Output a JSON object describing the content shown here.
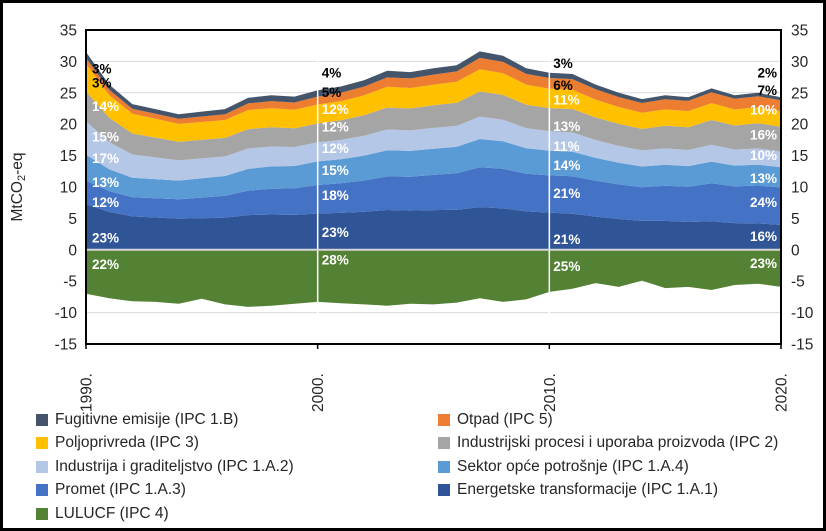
{
  "figure": {
    "y_axis_label": {
      "pre": "MtCO",
      "sub": "2",
      "post": "-eq"
    }
  },
  "chart_data": {
    "type": "area",
    "stacked": true,
    "title": "",
    "xlabel": "",
    "ylabel": "MtCO2-eq",
    "ylim": [
      -15,
      35
    ],
    "grid": true,
    "legend_position": "bottom",
    "y_ticks": [
      35,
      30,
      25,
      20,
      15,
      10,
      5,
      0,
      -5,
      -10,
      -15
    ],
    "x_tick_years": [
      1990,
      2000,
      2010,
      2020
    ],
    "x_tick_labels": [
      "1990.",
      "2000.",
      "2010.",
      "2020."
    ],
    "years": [
      1990,
      1991,
      1992,
      1993,
      1994,
      1995,
      1996,
      1997,
      1998,
      1999,
      2000,
      2001,
      2002,
      2003,
      2004,
      2005,
      2006,
      2007,
      2008,
      2009,
      2010,
      2011,
      2012,
      2013,
      2014,
      2015,
      2016,
      2017,
      2018,
      2019,
      2020
    ],
    "totals_excl_lulucf": [
      31.5,
      26.3,
      23.2,
      22.4,
      21.6,
      22.0,
      22.4,
      24.2,
      24.6,
      24.4,
      25.4,
      26.0,
      27.0,
      28.5,
      28.3,
      28.9,
      29.4,
      31.6,
      30.9,
      28.9,
      28.2,
      28.0,
      26.3,
      25.0,
      24.0,
      24.6,
      24.3,
      25.7,
      24.6,
      25.0,
      24.3
    ],
    "series": [
      {
        "name": "Energetske transformacije (IPC 1.A.1)",
        "slug": "energetske-transformacije",
        "color": "#2f5597",
        "share_pct_at": {
          "1990": 23,
          "2000": 23,
          "2010": 21,
          "2020": 16
        }
      },
      {
        "name": "Promet (IPC 1.A.3)",
        "slug": "promet",
        "color": "#4472c4",
        "share_pct_at": {
          "1990": 12,
          "2000": 18,
          "2010": 21,
          "2020": 24
        }
      },
      {
        "name": "Sektor opće potrošnje (IPC 1.A.4)",
        "slug": "sektor-opce-potrosnje",
        "color": "#5b9bd5",
        "share_pct_at": {
          "1990": 13,
          "2000": 15,
          "2010": 14,
          "2020": 13
        }
      },
      {
        "name": "Industrija i graditeljstvo (IPC 1.A.2)",
        "slug": "industrija-i-graditeljstvo",
        "color": "#b4c7e7",
        "share_pct_at": {
          "1990": 17,
          "2000": 12,
          "2010": 11,
          "2020": 10
        }
      },
      {
        "name": "Industrijski procesi i uporaba proizvoda (IPC 2)",
        "slug": "industrijski-procesi",
        "color": "#a5a5a5",
        "share_pct_at": {
          "1990": 15,
          "2000": 12,
          "2010": 13,
          "2020": 16
        }
      },
      {
        "name": "Poljoprivreda (IPC 3)",
        "slug": "poljoprivreda",
        "color": "#ffc000",
        "share_pct_at": {
          "1990": 14,
          "2000": 12,
          "2010": 11,
          "2020": 10
        }
      },
      {
        "name": "Otpad (IPC 5)",
        "slug": "otpad",
        "color": "#ed7d31",
        "share_pct_at": {
          "1990": 3,
          "2000": 5,
          "2010": 6,
          "2020": 7
        }
      },
      {
        "name": "Fugitivne emisije (IPC 1.B)",
        "slug": "fugitivne-emisije",
        "color": "#44546a",
        "share_pct_at": {
          "1990": 3,
          "2000": 4,
          "2010": 3,
          "2020": 2
        }
      }
    ],
    "lulucf": {
      "name": "LULUCF (IPC 4)",
      "slug": "lulucf",
      "color": "#548235",
      "share_pct_at": {
        "1990": 22,
        "2000": 28,
        "2010": 25,
        "2020": 23
      },
      "values": [
        -7.0,
        -7.7,
        -8.2,
        -8.3,
        -8.6,
        -7.8,
        -8.7,
        -9.1,
        -8.9,
        -8.6,
        -8.3,
        -8.5,
        -8.7,
        -8.9,
        -8.6,
        -8.7,
        -8.4,
        -7.7,
        -8.3,
        -7.9,
        -6.7,
        -6.2,
        -5.3,
        -5.9,
        -4.9,
        -6.1,
        -5.9,
        -6.4,
        -5.6,
        -5.4,
        -5.9
      ]
    },
    "annotations": [
      {
        "year": 1990,
        "align": "start",
        "dx": 6,
        "labels": [
          {
            "text": "3%",
            "v": 28.8,
            "ink": "dark"
          },
          {
            "text": "3%",
            "v": 26.6,
            "ink": "dark"
          },
          {
            "text": "14%",
            "v": 22.9,
            "ink": "light"
          },
          {
            "text": "15%",
            "v": 18.0,
            "ink": "light"
          },
          {
            "text": "17%",
            "v": 14.6,
            "ink": "light"
          },
          {
            "text": "13%",
            "v": 10.8,
            "ink": "light"
          },
          {
            "text": "12%",
            "v": 7.6,
            "ink": "light"
          },
          {
            "text": "23%",
            "v": 1.9,
            "ink": "light"
          },
          {
            "text": "22%",
            "v": -2.3,
            "ink": "light"
          }
        ]
      },
      {
        "year": 2000,
        "align": "start",
        "dx": 4,
        "labels": [
          {
            "text": "4%",
            "v": 28.2,
            "ink": "dark"
          },
          {
            "text": "5%",
            "v": 25.1,
            "ink": "dark"
          },
          {
            "text": "12%",
            "v": 22.4,
            "ink": "light"
          },
          {
            "text": "12%",
            "v": 19.6,
            "ink": "light"
          },
          {
            "text": "12%",
            "v": 16.2,
            "ink": "light"
          },
          {
            "text": "15%",
            "v": 12.7,
            "ink": "light"
          },
          {
            "text": "18%",
            "v": 8.7,
            "ink": "light"
          },
          {
            "text": "23%",
            "v": 2.8,
            "ink": "light"
          },
          {
            "text": "28%",
            "v": -1.6,
            "ink": "light"
          }
        ]
      },
      {
        "year": 2010,
        "align": "start",
        "dx": 4,
        "labels": [
          {
            "text": "3%",
            "v": 29.7,
            "ink": "dark"
          },
          {
            "text": "6%",
            "v": 26.2,
            "ink": "dark"
          },
          {
            "text": "11%",
            "v": 23.9,
            "ink": "light"
          },
          {
            "text": "13%",
            "v": 19.7,
            "ink": "light"
          },
          {
            "text": "11%",
            "v": 16.5,
            "ink": "light"
          },
          {
            "text": "14%",
            "v": 13.5,
            "ink": "light"
          },
          {
            "text": "21%",
            "v": 9.0,
            "ink": "light"
          },
          {
            "text": "21%",
            "v": 1.7,
            "ink": "light"
          },
          {
            "text": "25%",
            "v": -2.6,
            "ink": "light"
          }
        ]
      },
      {
        "year": 2020,
        "align": "end",
        "dx": -4,
        "labels": [
          {
            "text": "2%",
            "v": 28.2,
            "ink": "dark"
          },
          {
            "text": "7%",
            "v": 25.4,
            "ink": "dark"
          },
          {
            "text": "10%",
            "v": 22.3,
            "ink": "light"
          },
          {
            "text": "16%",
            "v": 18.3,
            "ink": "light"
          },
          {
            "text": "10%",
            "v": 15.1,
            "ink": "light"
          },
          {
            "text": "13%",
            "v": 11.4,
            "ink": "light"
          },
          {
            "text": "24%",
            "v": 7.6,
            "ink": "light"
          },
          {
            "text": "16%",
            "v": 2.2,
            "ink": "light"
          },
          {
            "text": "23%",
            "v": -2.1,
            "ink": "light"
          }
        ]
      }
    ],
    "colors": {
      "gridline": "#d9d9d9",
      "zero_line": "#d6d6d6",
      "plot_border": "#000000",
      "decade_divider": "#ffffff",
      "tick_label": "#262626",
      "annotation_dark": "#000000",
      "annotation_light": "#ffffff"
    }
  },
  "legend": {
    "items": [
      {
        "label": "Fugitivne emisije (IPC 1.B)",
        "slug": "fugitivne-emisije",
        "color": "#44546a"
      },
      {
        "label": "Otpad (IPC 5)",
        "slug": "otpad",
        "color": "#ed7d31"
      },
      {
        "label": "Poljoprivreda (IPC 3)",
        "slug": "poljoprivreda",
        "color": "#ffc000"
      },
      {
        "label": "Industrijski procesi i uporaba proizvoda (IPC 2)",
        "slug": "industrijski-procesi",
        "color": "#a5a5a5"
      },
      {
        "label": "Industrija i graditeljstvo (IPC 1.A.2)",
        "slug": "industrija-i-graditeljstvo",
        "color": "#b4c7e7"
      },
      {
        "label": "Sektor opće potrošnje (IPC 1.A.4)",
        "slug": "sektor-opce-potrosnje",
        "color": "#5b9bd5"
      },
      {
        "label": "Promet (IPC 1.A.3)",
        "slug": "promet",
        "color": "#4472c4"
      },
      {
        "label": "Energetske transformacije (IPC 1.A.1)",
        "slug": "energetske-transformacije",
        "color": "#2f5597"
      },
      {
        "label": "LULUCF (IPC 4)",
        "slug": "lulucf",
        "color": "#548235"
      }
    ]
  }
}
